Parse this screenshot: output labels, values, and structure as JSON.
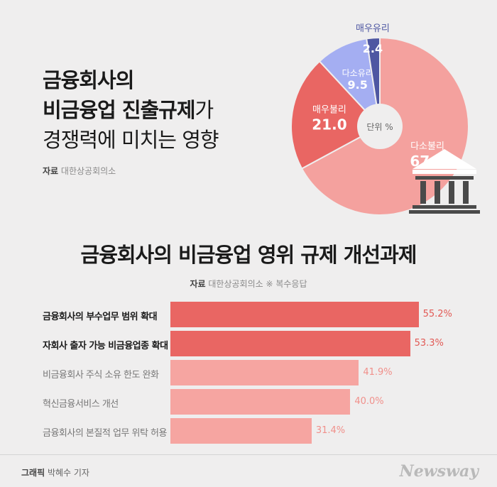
{
  "title": {
    "line1": "금융회사의",
    "line2_bold": "비금융업 진출규제",
    "line2_rest": "가",
    "line3": "경쟁력에 미치는 영향"
  },
  "source_top": {
    "label": "자료",
    "value": "대한상공회의소"
  },
  "chart_data": [
    {
      "type": "pie",
      "center_label": "단위",
      "unit": "%",
      "slices": [
        {
          "name": "다소불리",
          "value": 67.1,
          "color": "#f4a19e"
        },
        {
          "name": "매우불리",
          "value": 21.0,
          "color": "#e96663"
        },
        {
          "name": "다소유리",
          "value": 9.5,
          "color": "#a4aef2"
        },
        {
          "name": "매우유리",
          "value": 2.4,
          "color": "#4e57a2"
        }
      ]
    },
    {
      "type": "bar",
      "title": "금융회사의 비금융업 영위 규제 개선과제",
      "unit": "%",
      "categories": [
        "금융회사의 부수업무 범위 확대",
        "자회사 출자 가능 비금융업종 확대",
        "비금융회사 주식 소유 한도 완화",
        "혁신금융서비스 개선",
        "금융회사의 본질적 업무 위탁 허용"
      ],
      "values": [
        55.2,
        53.3,
        41.9,
        40.0,
        31.4
      ],
      "value_labels": [
        "55.2%",
        "53.3%",
        "41.9%",
        "40.0%",
        "31.4%"
      ],
      "highlight": [
        true,
        true,
        false,
        false,
        false
      ],
      "colors": {
        "highlight": "#e96663",
        "normal": "#f6a5a1",
        "highlight_text": "#e25a55",
        "normal_text": "#f0908b"
      }
    }
  ],
  "source_bottom": {
    "label": "자료",
    "value": "대한상공회의소 ※ 복수응답"
  },
  "footer": {
    "credit_label": "그래픽",
    "credit_value": "박혜수 기자",
    "logo": "Newsway"
  },
  "icons": {
    "building": "bank-building-icon"
  }
}
